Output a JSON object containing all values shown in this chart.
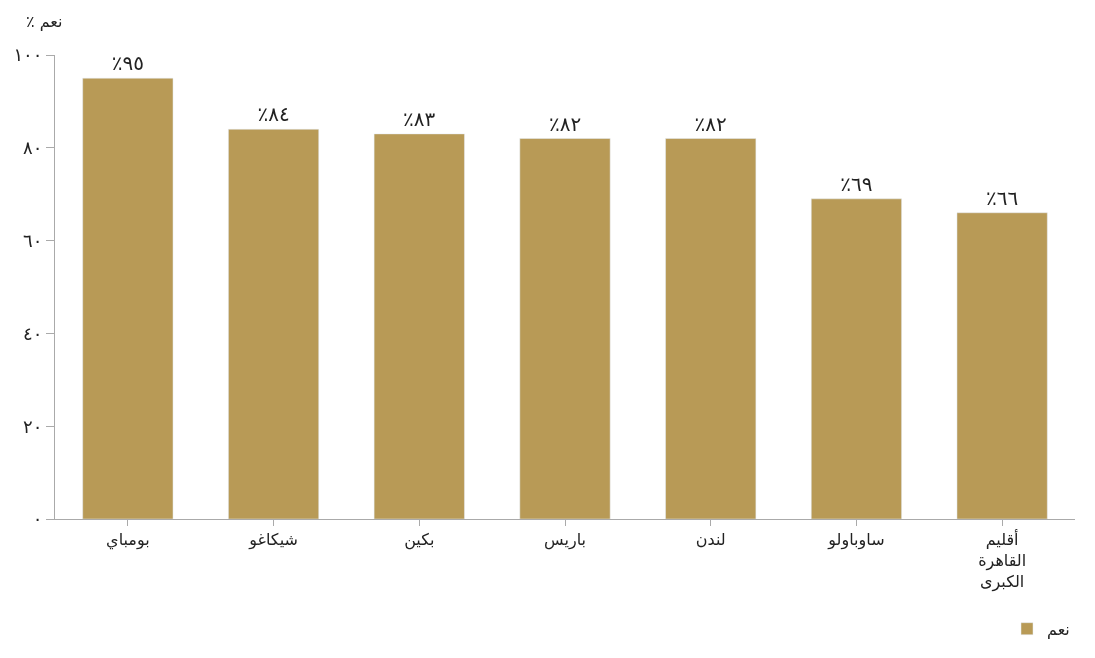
{
  "chart_data": {
    "type": "bar",
    "ylabel": "٪ نعم",
    "categories": [
      "بومباي",
      "شيكاغو",
      "بكين",
      "باريس",
      "لندن",
      "ساوباولو",
      "أقليم القاهرة الكبرى"
    ],
    "series": [
      {
        "name": "نعم",
        "color": "#b89a56",
        "values": [
          95,
          84,
          83,
          82,
          82,
          69,
          66
        ],
        "value_labels": [
          "٪٩٥",
          "٪٨٤",
          "٪٨٣",
          "٪٨٢",
          "٪٨٢",
          "٪٦٩",
          "٪٦٦"
        ]
      }
    ],
    "ylim": [
      0,
      100
    ],
    "yticks": [
      {
        "value": 0,
        "label": "٠"
      },
      {
        "value": 20,
        "label": "٢٠"
      },
      {
        "value": 40,
        "label": "٤٠"
      },
      {
        "value": 60,
        "label": "٦٠"
      },
      {
        "value": 80,
        "label": "٨٠"
      },
      {
        "value": 100,
        "label": "١٠٠"
      }
    ],
    "legend": "bottom right"
  }
}
